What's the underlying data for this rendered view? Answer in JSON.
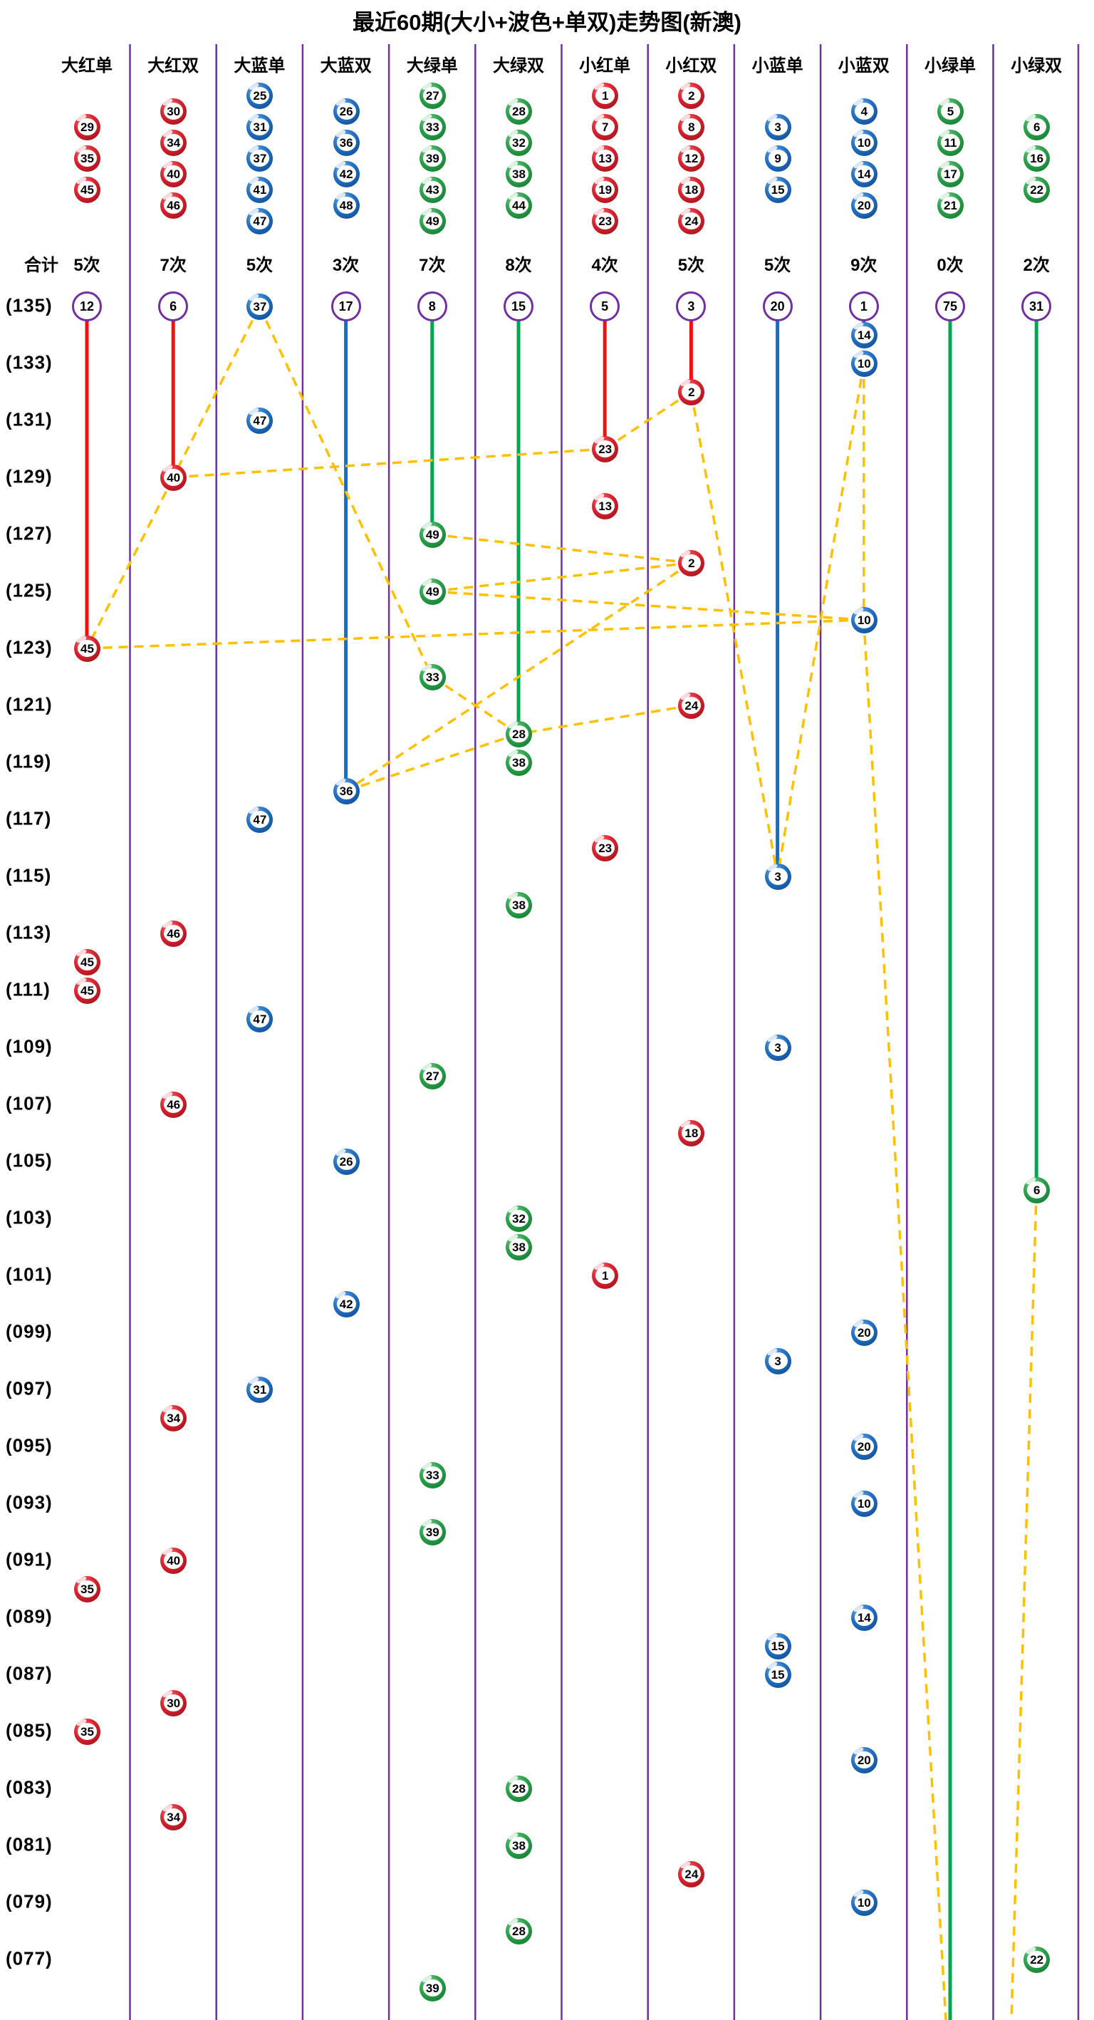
{
  "title": "最近60期(大小+波色+单双)走势图(新澳)",
  "summary_label": "合计",
  "colors": {
    "red": "#EE1111",
    "blue": "#1070C8",
    "green": "#00A651",
    "divider_purple": "#7030A0",
    "dash_yellow": "#FFC000",
    "text": "#000000"
  },
  "columns": [
    {
      "label": "大红单",
      "color": "red",
      "header_balls": [
        29,
        35,
        45
      ],
      "count": "5次",
      "miss": "12",
      "latest_row": 123
    },
    {
      "label": "大红双",
      "color": "red",
      "header_balls": [
        30,
        34,
        40,
        46
      ],
      "count": "7次",
      "miss": "6",
      "latest_row": 129
    },
    {
      "label": "大蓝单",
      "color": "blue",
      "header_balls": [
        25,
        31,
        37,
        41,
        47
      ],
      "count": "5次",
      "miss": null,
      "latest_row": null
    },
    {
      "label": "大蓝双",
      "color": "blue",
      "header_balls": [
        26,
        36,
        42,
        48
      ],
      "count": "3次",
      "miss": "17",
      "latest_row": 118
    },
    {
      "label": "大绿单",
      "color": "green",
      "header_balls": [
        27,
        33,
        39,
        43,
        49
      ],
      "count": "7次",
      "miss": "8",
      "latest_row": 127
    },
    {
      "label": "大绿双",
      "color": "green",
      "header_balls": [
        28,
        32,
        38,
        44
      ],
      "count": "8次",
      "miss": "15",
      "latest_row": 120
    },
    {
      "label": "小红单",
      "color": "red",
      "header_balls": [
        1,
        7,
        13,
        19,
        23
      ],
      "count": "4次",
      "miss": "5",
      "latest_row": 130
    },
    {
      "label": "小红双",
      "color": "red",
      "header_balls": [
        2,
        8,
        12,
        18,
        24
      ],
      "count": "5次",
      "miss": "3",
      "latest_row": 132
    },
    {
      "label": "小蓝单",
      "color": "blue",
      "header_balls": [
        3,
        9,
        15
      ],
      "count": "5次",
      "miss": "20",
      "latest_row": 115
    },
    {
      "label": "小蓝双",
      "color": "blue",
      "header_balls": [
        4,
        10,
        14,
        20
      ],
      "count": "9次",
      "miss": "1",
      "latest_row": 134
    },
    {
      "label": "小绿单",
      "color": "green",
      "header_balls": [
        5,
        11,
        17,
        21
      ],
      "count": "0次",
      "miss": "75",
      "latest_row": "bottom"
    },
    {
      "label": "小绿双",
      "color": "green",
      "header_balls": [
        6,
        16,
        22
      ],
      "count": "2次",
      "miss": "31",
      "latest_row": 104
    }
  ],
  "row_labels": [
    "(135)",
    "(133)",
    "(131)",
    "(129)",
    "(127)",
    "(125)",
    "(123)",
    "(121)",
    "(119)",
    "(117)",
    "(115)",
    "(113)",
    "(111)",
    "(109)",
    "(107)",
    "(105)",
    "(103)",
    "(101)",
    "(099)",
    "(097)",
    "(095)",
    "(093)",
    "(091)",
    "(089)",
    "(087)",
    "(085)",
    "(083)",
    "(081)",
    "(079)",
    "(077)"
  ],
  "chart_data": {
    "type": "scatter",
    "title": "最近60期(大小+波色+单双)走势图(新澳)",
    "x_categories": [
      "大红单",
      "大红双",
      "大蓝单",
      "大蓝双",
      "大绿单",
      "大绿双",
      "小红单",
      "小红双",
      "小蓝单",
      "小蓝双",
      "小绿单",
      "小绿双"
    ],
    "y_range": [
      135,
      76
    ],
    "draws": [
      {
        "row": 135,
        "col": 3,
        "num": 37
      },
      {
        "row": 134,
        "col": 10,
        "num": 14
      },
      {
        "row": 133,
        "col": 10,
        "num": 10
      },
      {
        "row": 132,
        "col": 8,
        "num": 2
      },
      {
        "row": 131,
        "col": 3,
        "num": 47
      },
      {
        "row": 130,
        "col": 7,
        "num": 23
      },
      {
        "row": 129,
        "col": 2,
        "num": 40
      },
      {
        "row": 128,
        "col": 7,
        "num": 13
      },
      {
        "row": 127,
        "col": 5,
        "num": 49
      },
      {
        "row": 126,
        "col": 8,
        "num": 2
      },
      {
        "row": 125,
        "col": 5,
        "num": 49
      },
      {
        "row": 124,
        "col": 10,
        "num": 10
      },
      {
        "row": 123,
        "col": 1,
        "num": 45
      },
      {
        "row": 122,
        "col": 5,
        "num": 33
      },
      {
        "row": 121,
        "col": 8,
        "num": 24
      },
      {
        "row": 120,
        "col": 6,
        "num": 28
      },
      {
        "row": 119,
        "col": 6,
        "num": 38
      },
      {
        "row": 118,
        "col": 4,
        "num": 36
      },
      {
        "row": 117,
        "col": 3,
        "num": 47
      },
      {
        "row": 116,
        "col": 7,
        "num": 23
      },
      {
        "row": 115,
        "col": 9,
        "num": 3
      },
      {
        "row": 114,
        "col": 6,
        "num": 38
      },
      {
        "row": 113,
        "col": 2,
        "num": 46
      },
      {
        "row": 112,
        "col": 1,
        "num": 45
      },
      {
        "row": 111,
        "col": 1,
        "num": 45
      },
      {
        "row": 110,
        "col": 3,
        "num": 47
      },
      {
        "row": 109,
        "col": 9,
        "num": 3
      },
      {
        "row": 108,
        "col": 5,
        "num": 27
      },
      {
        "row": 107,
        "col": 2,
        "num": 46
      },
      {
        "row": 106,
        "col": 8,
        "num": 18
      },
      {
        "row": 105,
        "col": 4,
        "num": 26
      },
      {
        "row": 104,
        "col": 12,
        "num": 6
      },
      {
        "row": 103,
        "col": 6,
        "num": 32
      },
      {
        "row": 102,
        "col": 6,
        "num": 38
      },
      {
        "row": 101,
        "col": 7,
        "num": 1
      },
      {
        "row": 100,
        "col": 4,
        "num": 42
      },
      {
        "row": 99,
        "col": 10,
        "num": 20
      },
      {
        "row": 98,
        "col": 9,
        "num": 3
      },
      {
        "row": 97,
        "col": 3,
        "num": 31
      },
      {
        "row": 96,
        "col": 2,
        "num": 34
      },
      {
        "row": 95,
        "col": 10,
        "num": 20
      },
      {
        "row": 94,
        "col": 5,
        "num": 33
      },
      {
        "row": 93,
        "col": 10,
        "num": 10
      },
      {
        "row": 92,
        "col": 5,
        "num": 39
      },
      {
        "row": 91,
        "col": 2,
        "num": 40
      },
      {
        "row": 90,
        "col": 1,
        "num": 35
      },
      {
        "row": 89,
        "col": 10,
        "num": 14
      },
      {
        "row": 88,
        "col": 9,
        "num": 15
      },
      {
        "row": 87,
        "col": 9,
        "num": 15
      },
      {
        "row": 86,
        "col": 2,
        "num": 30
      },
      {
        "row": 85,
        "col": 1,
        "num": 35
      },
      {
        "row": 84,
        "col": 10,
        "num": 20
      },
      {
        "row": 83,
        "col": 6,
        "num": 28
      },
      {
        "row": 82,
        "col": 2,
        "num": 34
      },
      {
        "row": 81,
        "col": 6,
        "num": 38
      },
      {
        "row": 80,
        "col": 8,
        "num": 24
      },
      {
        "row": 79,
        "col": 10,
        "num": 10
      },
      {
        "row": 78,
        "col": 6,
        "num": 28
      },
      {
        "row": 77,
        "col": 12,
        "num": 22
      },
      {
        "row": 76,
        "col": 5,
        "num": 39
      }
    ],
    "dash_links": [
      {
        "from": [
          3,
          135
        ],
        "to": [
          2,
          129
        ]
      },
      {
        "from": [
          2,
          129
        ],
        "to": [
          1,
          123
        ]
      },
      {
        "from": [
          10,
          124
        ],
        "to": [
          1,
          123
        ]
      },
      {
        "from": [
          3,
          135
        ],
        "to": [
          5,
          122
        ]
      },
      {
        "from": [
          5,
          122
        ],
        "to": [
          6,
          120
        ]
      },
      {
        "from": [
          8,
          121
        ],
        "to": [
          6,
          120
        ]
      },
      {
        "from": [
          6,
          120
        ],
        "to": [
          4,
          118
        ]
      },
      {
        "from": [
          8,
          126
        ],
        "to": [
          4,
          118
        ]
      },
      {
        "from": [
          10,
          134
        ],
        "to": [
          10,
          133
        ]
      },
      {
        "from": [
          10,
          133
        ],
        "to": [
          10,
          124
        ]
      },
      {
        "from": [
          10,
          133
        ],
        "to": [
          9,
          115
        ]
      },
      {
        "from": [
          8,
          132
        ],
        "to": [
          9,
          115
        ]
      },
      {
        "from": [
          8,
          132
        ],
        "to": [
          7,
          130
        ]
      },
      {
        "from": [
          7,
          130
        ],
        "to": [
          2,
          129
        ]
      },
      {
        "from": [
          5,
          127
        ],
        "to": [
          8,
          126
        ]
      },
      {
        "from": [
          8,
          126
        ],
        "to": [
          5,
          125
        ]
      },
      {
        "from": [
          5,
          125
        ],
        "to": [
          10,
          124
        ]
      },
      {
        "from": [
          10,
          124
        ],
        "to_xy": [
          1328,
          2835
        ]
      },
      {
        "from": [
          12,
          104
        ],
        "to_xy": [
          1420,
          2835
        ]
      }
    ]
  }
}
